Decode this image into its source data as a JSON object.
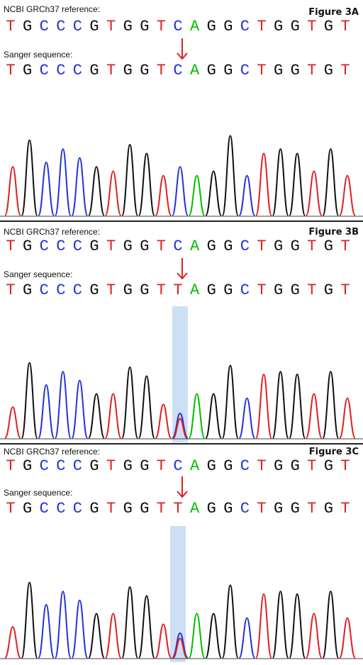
{
  "colors": {
    "A": "#00c000",
    "C": "#2233dd",
    "G": "#111111",
    "T": "#e02020",
    "arrow": "#e02020",
    "highlight": "#b8d2ee"
  },
  "panels": [
    {
      "title": "Figure 3A",
      "ref_label": "NCBI GRCh37 reference:",
      "sanger_label": "Sanger sequence:",
      "ref_bases": [
        "T",
        "G",
        "C",
        "C",
        "C",
        "G",
        "T",
        "G",
        "G",
        "T",
        "C",
        "A",
        "G",
        "G",
        "C",
        "T",
        "G",
        "G",
        "T",
        "G",
        "T"
      ],
      "sanger_bases": [
        "T",
        "G",
        "C",
        "C",
        "C",
        "G",
        "T",
        "G",
        "G",
        "T",
        "C",
        "A",
        "G",
        "G",
        "C",
        "T",
        "G",
        "G",
        "T",
        "G",
        "T"
      ],
      "peaks": [
        [
          "T",
          0.55
        ],
        [
          "G",
          0.85
        ],
        [
          "C",
          0.6
        ],
        [
          "C",
          0.75
        ],
        [
          "C",
          0.65
        ],
        [
          "G",
          0.55
        ],
        [
          "T",
          0.5
        ],
        [
          "G",
          0.8
        ],
        [
          "G",
          0.7
        ],
        [
          "T",
          0.45
        ],
        [
          "C",
          0.55
        ],
        [
          "A",
          0.45
        ],
        [
          "G",
          0.5
        ],
        [
          "G",
          0.9
        ],
        [
          "C",
          0.45
        ],
        [
          "T",
          0.7
        ],
        [
          "G",
          0.75
        ],
        [
          "G",
          0.7
        ],
        [
          "T",
          0.5
        ],
        [
          "G",
          0.75
        ],
        [
          "T",
          0.45
        ]
      ],
      "highlight": false
    },
    {
      "title": "Figure 3B",
      "ref_label": "NCBI GRCh37 reference:",
      "sanger_label": "Sanger sequence:",
      "ref_bases": [
        "T",
        "G",
        "C",
        "C",
        "C",
        "G",
        "T",
        "G",
        "G",
        "T",
        "C",
        "A",
        "G",
        "G",
        "C",
        "T",
        "G",
        "G",
        "T",
        "G",
        "T"
      ],
      "sanger_bases": [
        "T",
        "G",
        "C",
        "C",
        "C",
        "G",
        "T",
        "G",
        "G",
        "T",
        "T",
        "A",
        "G",
        "G",
        "C",
        "T",
        "G",
        "G",
        "T",
        "G",
        "T"
      ],
      "peaks": [
        [
          "T",
          0.35
        ],
        [
          "G",
          0.85
        ],
        [
          "C",
          0.6
        ],
        [
          "C",
          0.75
        ],
        [
          "C",
          0.65
        ],
        [
          "G",
          0.5
        ],
        [
          "T",
          0.5
        ],
        [
          "G",
          0.8
        ],
        [
          "G",
          0.7
        ],
        [
          "T",
          0.38
        ],
        [
          "C",
          0.28
        ],
        [
          "A",
          0.5
        ],
        [
          "G",
          0.5
        ],
        [
          "G",
          0.82
        ],
        [
          "C",
          0.45
        ],
        [
          "T",
          0.72
        ],
        [
          "G",
          0.75
        ],
        [
          "G",
          0.72
        ],
        [
          "T",
          0.5
        ],
        [
          "G",
          0.75
        ],
        [
          "T",
          0.45
        ]
      ],
      "highlight": true
    },
    {
      "title": "Figure 3C",
      "ref_label": "NCBI GRCh37 reference:",
      "sanger_label": "Sanger sequence:",
      "ref_bases": [
        "T",
        "G",
        "C",
        "C",
        "C",
        "G",
        "T",
        "G",
        "G",
        "T",
        "C",
        "A",
        "G",
        "G",
        "C",
        "T",
        "G",
        "G",
        "T",
        "G",
        "T"
      ],
      "sanger_bases": [
        "T",
        "G",
        "C",
        "C",
        "C",
        "G",
        "T",
        "G",
        "G",
        "T",
        "T",
        "A",
        "G",
        "G",
        "C",
        "T",
        "G",
        "G",
        "T",
        "G",
        "T"
      ],
      "peaks": [
        [
          "T",
          0.35
        ],
        [
          "G",
          0.85
        ],
        [
          "C",
          0.6
        ],
        [
          "C",
          0.75
        ],
        [
          "C",
          0.65
        ],
        [
          "G",
          0.5
        ],
        [
          "T",
          0.5
        ],
        [
          "G",
          0.8
        ],
        [
          "G",
          0.7
        ],
        [
          "T",
          0.38
        ],
        [
          "C",
          0.28
        ],
        [
          "A",
          0.5
        ],
        [
          "G",
          0.5
        ],
        [
          "G",
          0.82
        ],
        [
          "C",
          0.45
        ],
        [
          "T",
          0.72
        ],
        [
          "G",
          0.75
        ],
        [
          "G",
          0.72
        ],
        [
          "T",
          0.5
        ],
        [
          "G",
          0.75
        ],
        [
          "T",
          0.45
        ]
      ],
      "highlight": true
    }
  ]
}
